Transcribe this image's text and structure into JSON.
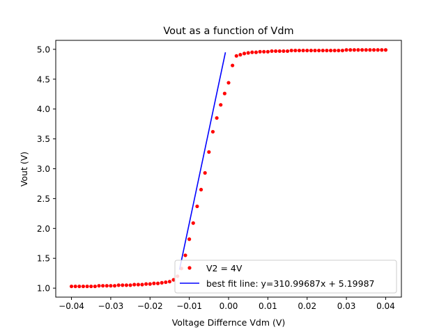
{
  "chart_data": {
    "type": "scatter",
    "title": "Vout as a function of Vdm",
    "xlabel": "Voltage Differnce Vdm (V)",
    "ylabel": "Vout (V)",
    "xlim": [
      -0.044,
      0.044
    ],
    "ylim": [
      0.85,
      5.15
    ],
    "xticks": [
      -0.04,
      -0.03,
      -0.02,
      -0.01,
      0.0,
      0.01,
      0.02,
      0.03,
      0.04
    ],
    "xtick_labels": [
      "−0.04",
      "−0.03",
      "−0.02",
      "−0.01",
      "0.00",
      "0.01",
      "0.02",
      "0.03",
      "0.04"
    ],
    "yticks": [
      1.0,
      1.5,
      2.0,
      2.5,
      3.0,
      3.5,
      4.0,
      4.5,
      5.0
    ],
    "ytick_labels": [
      "1.0",
      "1.5",
      "2.0",
      "2.5",
      "3.0",
      "3.5",
      "4.0",
      "4.5",
      "5.0"
    ],
    "grid": false,
    "legend_position": "lower-right",
    "series": [
      {
        "name": "V2 = 4V",
        "kind": "scatter",
        "color": "#ff0000",
        "x": [
          -0.04,
          -0.039,
          -0.038,
          -0.037,
          -0.036,
          -0.035,
          -0.034,
          -0.033,
          -0.032,
          -0.031,
          -0.03,
          -0.029,
          -0.028,
          -0.027,
          -0.026,
          -0.025,
          -0.024,
          -0.023,
          -0.022,
          -0.021,
          -0.02,
          -0.019,
          -0.018,
          -0.017,
          -0.016,
          -0.015,
          -0.014,
          -0.013,
          -0.012,
          -0.011,
          -0.01,
          -0.009,
          -0.008,
          -0.007,
          -0.006,
          -0.005,
          -0.004,
          -0.003,
          -0.002,
          -0.001,
          0.0,
          0.001,
          0.002,
          0.003,
          0.004,
          0.005,
          0.006,
          0.007,
          0.008,
          0.009,
          0.01,
          0.011,
          0.012,
          0.013,
          0.014,
          0.015,
          0.016,
          0.017,
          0.018,
          0.019,
          0.02,
          0.021,
          0.022,
          0.023,
          0.024,
          0.025,
          0.026,
          0.027,
          0.028,
          0.029,
          0.03,
          0.031,
          0.032,
          0.033,
          0.034,
          0.035,
          0.036,
          0.037,
          0.038,
          0.039,
          0.04
        ],
        "y": [
          1.03,
          1.03,
          1.03,
          1.03,
          1.03,
          1.03,
          1.03,
          1.04,
          1.04,
          1.04,
          1.04,
          1.04,
          1.05,
          1.05,
          1.05,
          1.05,
          1.06,
          1.06,
          1.06,
          1.07,
          1.07,
          1.08,
          1.08,
          1.09,
          1.1,
          1.11,
          1.14,
          1.2,
          1.33,
          1.55,
          1.82,
          2.09,
          2.37,
          2.65,
          2.93,
          3.28,
          3.62,
          3.85,
          4.07,
          4.26,
          4.44,
          4.73,
          4.89,
          4.91,
          4.93,
          4.94,
          4.95,
          4.95,
          4.96,
          4.96,
          4.96,
          4.97,
          4.97,
          4.97,
          4.97,
          4.97,
          4.98,
          4.98,
          4.98,
          4.98,
          4.98,
          4.98,
          4.98,
          4.98,
          4.98,
          4.98,
          4.98,
          4.98,
          4.98,
          4.98,
          4.99,
          4.99,
          4.99,
          4.99,
          4.99,
          4.99,
          4.99,
          4.99,
          4.99,
          4.99,
          4.99
        ],
        "visible_points_note": ""
      },
      {
        "name": "best fit line: y=310.99687x + 5.19987",
        "kind": "line",
        "color": "#0000ff",
        "x": [
          -0.0125,
          -0.0008
        ],
        "y": [
          1.31,
          4.95
        ]
      }
    ]
  }
}
